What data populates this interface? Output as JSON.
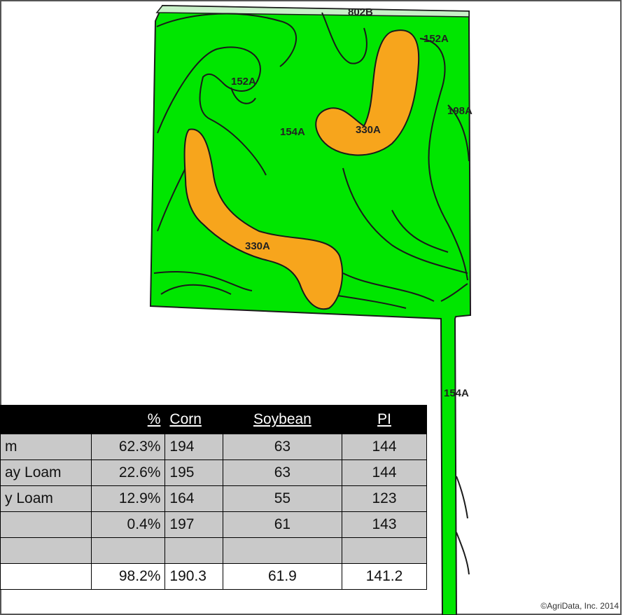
{
  "map": {
    "colors": {
      "background": "#ffffff",
      "zone_green": "#00e600",
      "zone_orange": "#f7a51c",
      "outline": "#1a1a1a"
    },
    "labels": [
      "802B",
      "152A",
      "152A",
      "198A",
      "154A",
      "330A",
      "330A",
      "154A"
    ],
    "credit": "©AgriData, Inc. 2014"
  },
  "table": {
    "headers": [
      "",
      "%",
      "Corn",
      "Soybean",
      "PI"
    ],
    "rows": [
      {
        "name": "m",
        "pct": "62.3%",
        "corn": "194",
        "soybean": "63",
        "pi": "144"
      },
      {
        "name": "ay Loam",
        "pct": "22.6%",
        "corn": "195",
        "soybean": "63",
        "pi": "144"
      },
      {
        "name": "y Loam",
        "pct": "12.9%",
        "corn": "164",
        "soybean": "55",
        "pi": "123"
      },
      {
        "name": "",
        "pct": "0.4%",
        "corn": "197",
        "soybean": "61",
        "pi": "143"
      },
      {
        "name": "",
        "pct": "",
        "corn": "",
        "soybean": "",
        "pi": ""
      }
    ],
    "average": {
      "name": "",
      "pct": "98.2%",
      "corn": "190.3",
      "soybean": "61.9",
      "pi": "141.2"
    }
  }
}
